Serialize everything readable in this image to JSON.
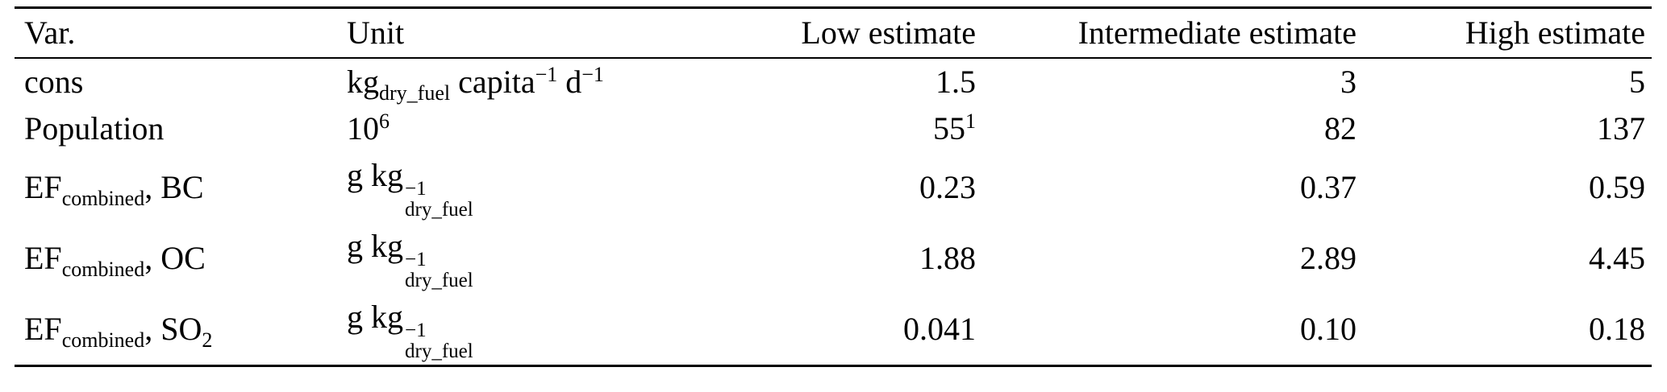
{
  "page": {
    "background": "#ffffff",
    "text_color": "#000000"
  },
  "table": {
    "columns": [
      {
        "key": "var",
        "label": "Var.",
        "align": "left"
      },
      {
        "key": "unit",
        "label": "Unit",
        "align": "left"
      },
      {
        "key": "low",
        "label": "Low estimate",
        "align": "right"
      },
      {
        "key": "intermediate",
        "label": "Intermediate estimate",
        "align": "right"
      },
      {
        "key": "high",
        "label": "High estimate",
        "align": "right"
      }
    ],
    "rows": [
      {
        "var": [
          {
            "text": "cons"
          }
        ],
        "unit": [
          {
            "text": "kg"
          },
          {
            "sub": "dry_fuel"
          },
          {
            "text": " capita"
          },
          {
            "sup": "−1"
          },
          {
            "text": " d"
          },
          {
            "sup": "−1"
          }
        ],
        "low": [
          {
            "text": "1.5"
          }
        ],
        "intermediate": [
          {
            "text": "3"
          }
        ],
        "high": [
          {
            "text": "5"
          }
        ]
      },
      {
        "var": [
          {
            "text": "Population"
          }
        ],
        "unit": [
          {
            "text": "10"
          },
          {
            "sup": "6"
          }
        ],
        "low": [
          {
            "text": "55"
          },
          {
            "sup": "1"
          }
        ],
        "intermediate": [
          {
            "text": "82"
          }
        ],
        "high": [
          {
            "text": "137"
          }
        ]
      },
      {
        "var": [
          {
            "text": "EF"
          },
          {
            "sub": "combined"
          },
          {
            "text": ", BC"
          }
        ],
        "unit": [
          {
            "text": "g kg"
          },
          {
            "stack": {
              "sup": "−1",
              "sub": "dry_fuel"
            }
          }
        ],
        "low": [
          {
            "text": "0.23"
          }
        ],
        "intermediate": [
          {
            "text": "0.37"
          }
        ],
        "high": [
          {
            "text": "0.59"
          }
        ]
      },
      {
        "var": [
          {
            "text": "EF"
          },
          {
            "sub": "combined"
          },
          {
            "text": ", OC"
          }
        ],
        "unit": [
          {
            "text": "g kg"
          },
          {
            "stack": {
              "sup": "−1",
              "sub": "dry_fuel"
            }
          }
        ],
        "low": [
          {
            "text": "1.88"
          }
        ],
        "intermediate": [
          {
            "text": "2.89"
          }
        ],
        "high": [
          {
            "text": "4.45"
          }
        ]
      },
      {
        "var": [
          {
            "text": "EF"
          },
          {
            "sub": "combined"
          },
          {
            "text": ", SO"
          },
          {
            "sub": "2"
          }
        ],
        "unit": [
          {
            "text": "g kg"
          },
          {
            "stack": {
              "sup": "−1",
              "sub": "dry_fuel"
            }
          }
        ],
        "low": [
          {
            "text": "0.041"
          }
        ],
        "intermediate": [
          {
            "text": "0.10"
          }
        ],
        "high": [
          {
            "text": "0.18"
          }
        ]
      }
    ]
  }
}
